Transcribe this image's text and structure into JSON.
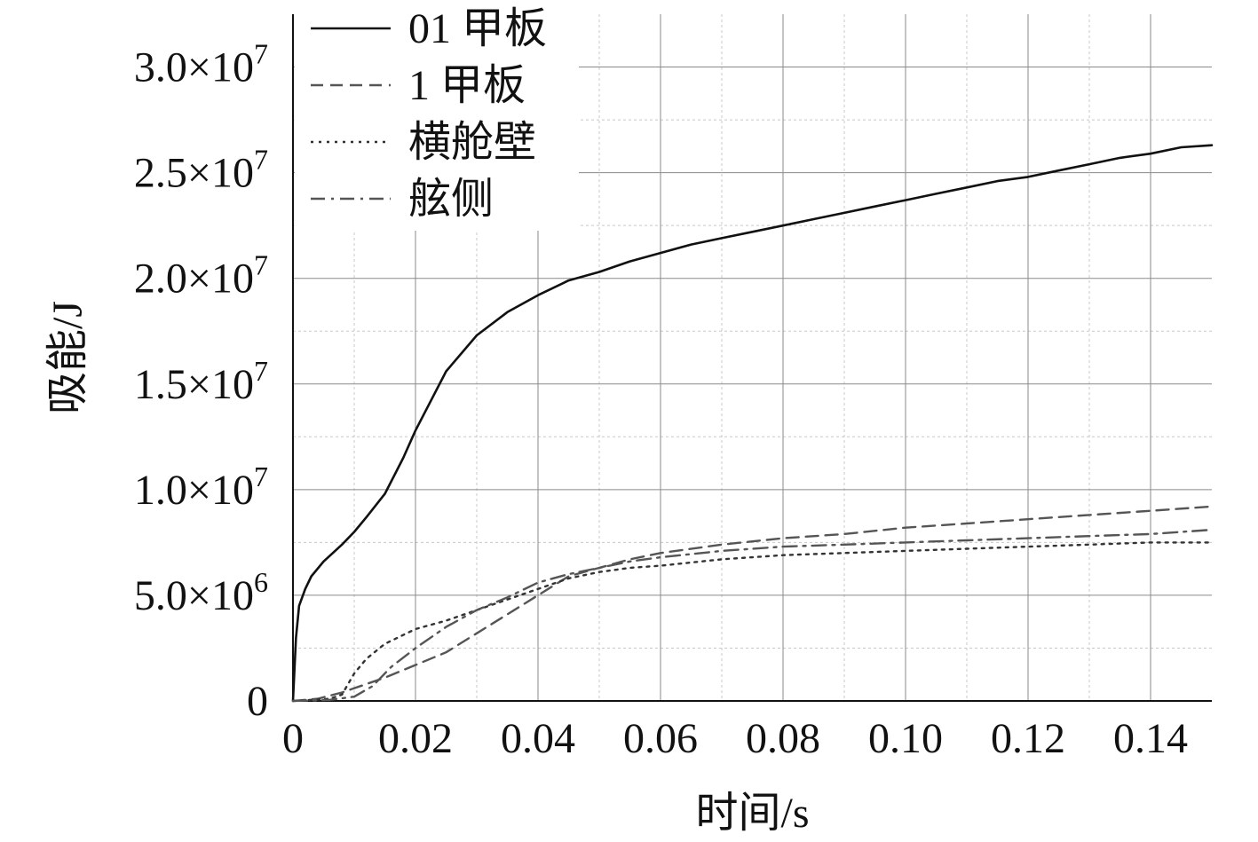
{
  "chart_data": {
    "type": "line",
    "xlabel": "时间/s",
    "ylabel": "吸能/J",
    "xlim": [
      0,
      0.15
    ],
    "ylim": [
      0,
      32500000
    ],
    "x_ticks": [
      0,
      0.02,
      0.04,
      0.06,
      0.08,
      0.1,
      0.12,
      0.14
    ],
    "x_tick_labels": [
      "0",
      "0.02",
      "0.04",
      "0.06",
      "0.08",
      "0.10",
      "0.12",
      "0.14"
    ],
    "y_ticks": [
      0,
      5000000,
      10000000,
      15000000,
      20000000,
      25000000,
      30000000
    ],
    "y_tick_labels": [
      {
        "mant": "0",
        "exp": ""
      },
      {
        "mant": "5.0×10",
        "exp": "6"
      },
      {
        "mant": "1.0×10",
        "exp": "7"
      },
      {
        "mant": "1.5×10",
        "exp": "7"
      },
      {
        "mant": "2.0×10",
        "exp": "7"
      },
      {
        "mant": "2.5×10",
        "exp": "7"
      },
      {
        "mant": "3.0×10",
        "exp": "7"
      }
    ],
    "grid": true,
    "minor_grid": true,
    "legend_position": "top-left",
    "series": [
      {
        "name": "01 甲板",
        "style": "solid",
        "color": "#111111",
        "points": [
          [
            0,
            0
          ],
          [
            0.0005,
            3000000
          ],
          [
            0.001,
            4500000
          ],
          [
            0.002,
            5300000
          ],
          [
            0.003,
            5900000
          ],
          [
            0.005,
            6600000
          ],
          [
            0.008,
            7400000
          ],
          [
            0.01,
            8000000
          ],
          [
            0.012,
            8700000
          ],
          [
            0.015,
            9800000
          ],
          [
            0.018,
            11500000
          ],
          [
            0.02,
            12800000
          ],
          [
            0.025,
            15600000
          ],
          [
            0.03,
            17300000
          ],
          [
            0.035,
            18400000
          ],
          [
            0.04,
            19200000
          ],
          [
            0.045,
            19900000
          ],
          [
            0.05,
            20300000
          ],
          [
            0.055,
            20800000
          ],
          [
            0.06,
            21200000
          ],
          [
            0.065,
            21600000
          ],
          [
            0.07,
            21900000
          ],
          [
            0.075,
            22200000
          ],
          [
            0.08,
            22500000
          ],
          [
            0.085,
            22800000
          ],
          [
            0.09,
            23100000
          ],
          [
            0.095,
            23400000
          ],
          [
            0.1,
            23700000
          ],
          [
            0.105,
            24000000
          ],
          [
            0.11,
            24300000
          ],
          [
            0.115,
            24600000
          ],
          [
            0.12,
            24800000
          ],
          [
            0.125,
            25100000
          ],
          [
            0.13,
            25400000
          ],
          [
            0.135,
            25700000
          ],
          [
            0.14,
            25900000
          ],
          [
            0.145,
            26200000
          ],
          [
            0.15,
            26300000
          ]
        ]
      },
      {
        "name": "1 甲板",
        "style": "dashed",
        "color": "#555555",
        "points": [
          [
            0,
            0
          ],
          [
            0.004,
            100000
          ],
          [
            0.008,
            400000
          ],
          [
            0.012,
            800000
          ],
          [
            0.015,
            1100000
          ],
          [
            0.02,
            1700000
          ],
          [
            0.025,
            2300000
          ],
          [
            0.03,
            3200000
          ],
          [
            0.035,
            4100000
          ],
          [
            0.04,
            5000000
          ],
          [
            0.045,
            5900000
          ],
          [
            0.05,
            6300000
          ],
          [
            0.055,
            6700000
          ],
          [
            0.06,
            7000000
          ],
          [
            0.07,
            7400000
          ],
          [
            0.08,
            7700000
          ],
          [
            0.09,
            7900000
          ],
          [
            0.1,
            8200000
          ],
          [
            0.11,
            8400000
          ],
          [
            0.12,
            8600000
          ],
          [
            0.13,
            8800000
          ],
          [
            0.14,
            9000000
          ],
          [
            0.15,
            9200000
          ]
        ]
      },
      {
        "name": "横舱壁",
        "style": "dotted",
        "color": "#333333",
        "points": [
          [
            0,
            0
          ],
          [
            0.006,
            100000
          ],
          [
            0.008,
            300000
          ],
          [
            0.01,
            1300000
          ],
          [
            0.012,
            2000000
          ],
          [
            0.015,
            2700000
          ],
          [
            0.02,
            3400000
          ],
          [
            0.025,
            3800000
          ],
          [
            0.03,
            4300000
          ],
          [
            0.035,
            4800000
          ],
          [
            0.04,
            5300000
          ],
          [
            0.045,
            5800000
          ],
          [
            0.05,
            6100000
          ],
          [
            0.055,
            6300000
          ],
          [
            0.06,
            6400000
          ],
          [
            0.07,
            6700000
          ],
          [
            0.08,
            6900000
          ],
          [
            0.09,
            7000000
          ],
          [
            0.1,
            7100000
          ],
          [
            0.11,
            7200000
          ],
          [
            0.12,
            7300000
          ],
          [
            0.13,
            7400000
          ],
          [
            0.14,
            7500000
          ],
          [
            0.15,
            7500000
          ]
        ]
      },
      {
        "name": "舷侧",
        "style": "dashdot",
        "color": "#555555",
        "points": [
          [
            0,
            0
          ],
          [
            0.006,
            50000
          ],
          [
            0.01,
            200000
          ],
          [
            0.013,
            700000
          ],
          [
            0.016,
            1600000
          ],
          [
            0.02,
            2500000
          ],
          [
            0.025,
            3500000
          ],
          [
            0.03,
            4300000
          ],
          [
            0.035,
            4900000
          ],
          [
            0.04,
            5600000
          ],
          [
            0.045,
            6000000
          ],
          [
            0.05,
            6300000
          ],
          [
            0.055,
            6600000
          ],
          [
            0.06,
            6800000
          ],
          [
            0.07,
            7100000
          ],
          [
            0.08,
            7300000
          ],
          [
            0.09,
            7400000
          ],
          [
            0.1,
            7500000
          ],
          [
            0.11,
            7600000
          ],
          [
            0.12,
            7700000
          ],
          [
            0.13,
            7800000
          ],
          [
            0.14,
            7900000
          ],
          [
            0.15,
            8100000
          ]
        ]
      }
    ]
  }
}
